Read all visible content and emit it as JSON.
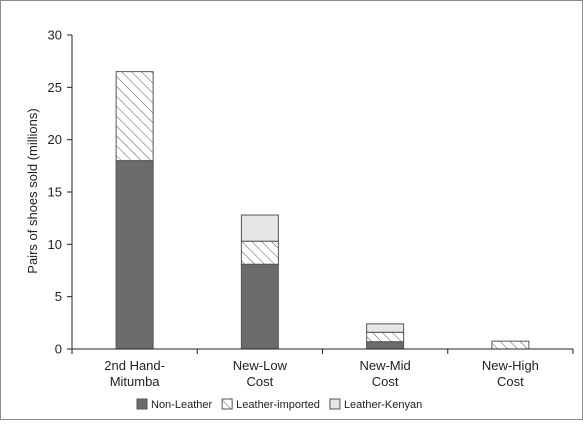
{
  "chart_data": {
    "type": "bar",
    "stacked": true,
    "categories": [
      "2nd Hand-Mitumba",
      "New-Low Cost",
      "New-Mid Cost",
      "New-High Cost"
    ],
    "category_label_lines": [
      [
        "2nd Hand-",
        "Mitumba"
      ],
      [
        "New-Low",
        "Cost"
      ],
      [
        "New-Mid",
        "Cost"
      ],
      [
        "New-High",
        "Cost"
      ]
    ],
    "series": [
      {
        "name": "Non-Leather",
        "values": [
          18,
          8.1,
          0.7,
          0
        ],
        "fill": "solid",
        "color": "#6b6b6b"
      },
      {
        "name": "Leather-imported",
        "values": [
          8.5,
          2.2,
          0.9,
          0.75
        ],
        "fill": "hatched",
        "color": "#ffffff"
      },
      {
        "name": "Leather-Kenyan",
        "values": [
          0,
          2.5,
          0.8,
          0
        ],
        "fill": "solid",
        "color": "#e6e6e6"
      }
    ],
    "title": "",
    "xlabel": "",
    "ylabel": "Pairs of shoes sold (millions)",
    "ylim": [
      0,
      30
    ],
    "yticks": [
      0,
      5,
      10,
      15,
      20,
      25,
      30
    ],
    "grid": false,
    "legend_position": "bottom"
  }
}
